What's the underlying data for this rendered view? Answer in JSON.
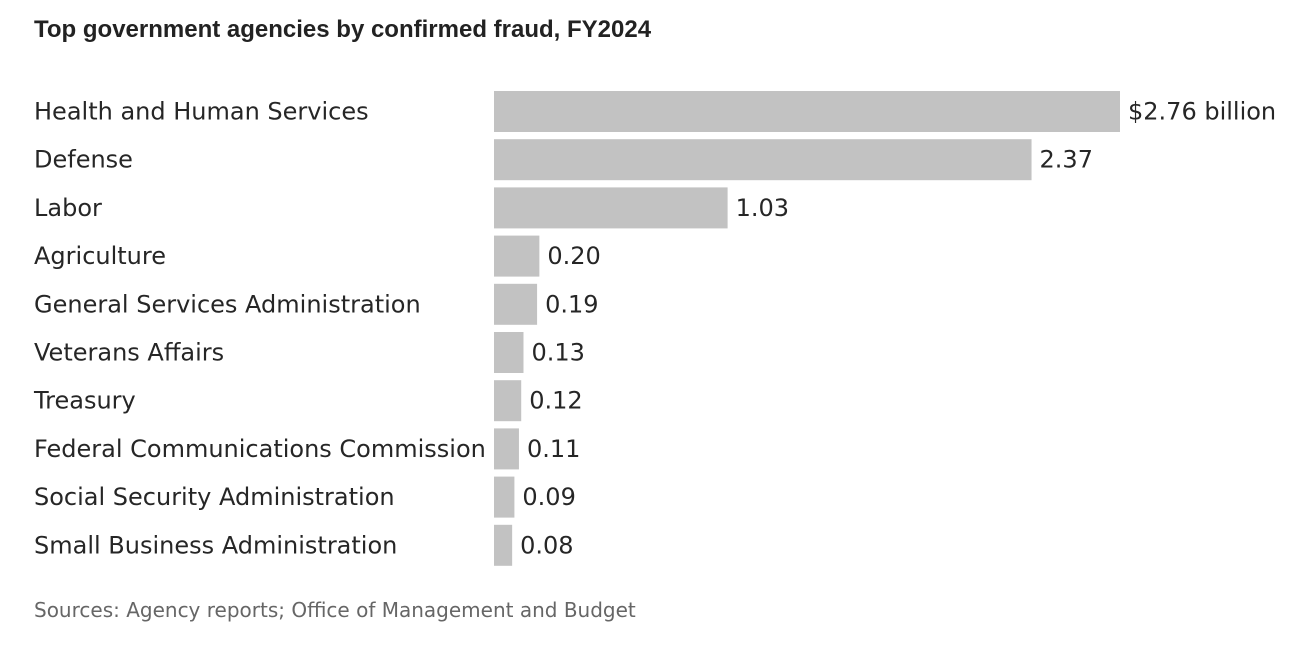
{
  "chart_data": {
    "type": "bar",
    "orientation": "horizontal",
    "title": "Top government agencies by confirmed fraud, FY2024",
    "categories": [
      "Health and Human Services",
      "Defense",
      "Labor",
      "Agriculture",
      "General Services Administration",
      "Veterans Affairs",
      "Treasury",
      "Federal Communications Commission",
      "Social Security Administration",
      "Small Business Administration"
    ],
    "values": [
      2.76,
      2.37,
      1.03,
      0.2,
      0.19,
      0.13,
      0.12,
      0.11,
      0.09,
      0.08
    ],
    "value_labels": [
      "$2.76 billion",
      "2.37",
      "1.03",
      "0.20",
      "0.19",
      "0.13",
      "0.12",
      "0.11",
      "0.09",
      "0.08"
    ],
    "xlabel": "",
    "ylabel": "",
    "xlim": [
      0,
      2.76
    ],
    "grid": false,
    "bar_color": "#c2c2c2",
    "source": "Sources: Agency reports; Office of Management and Budget"
  }
}
